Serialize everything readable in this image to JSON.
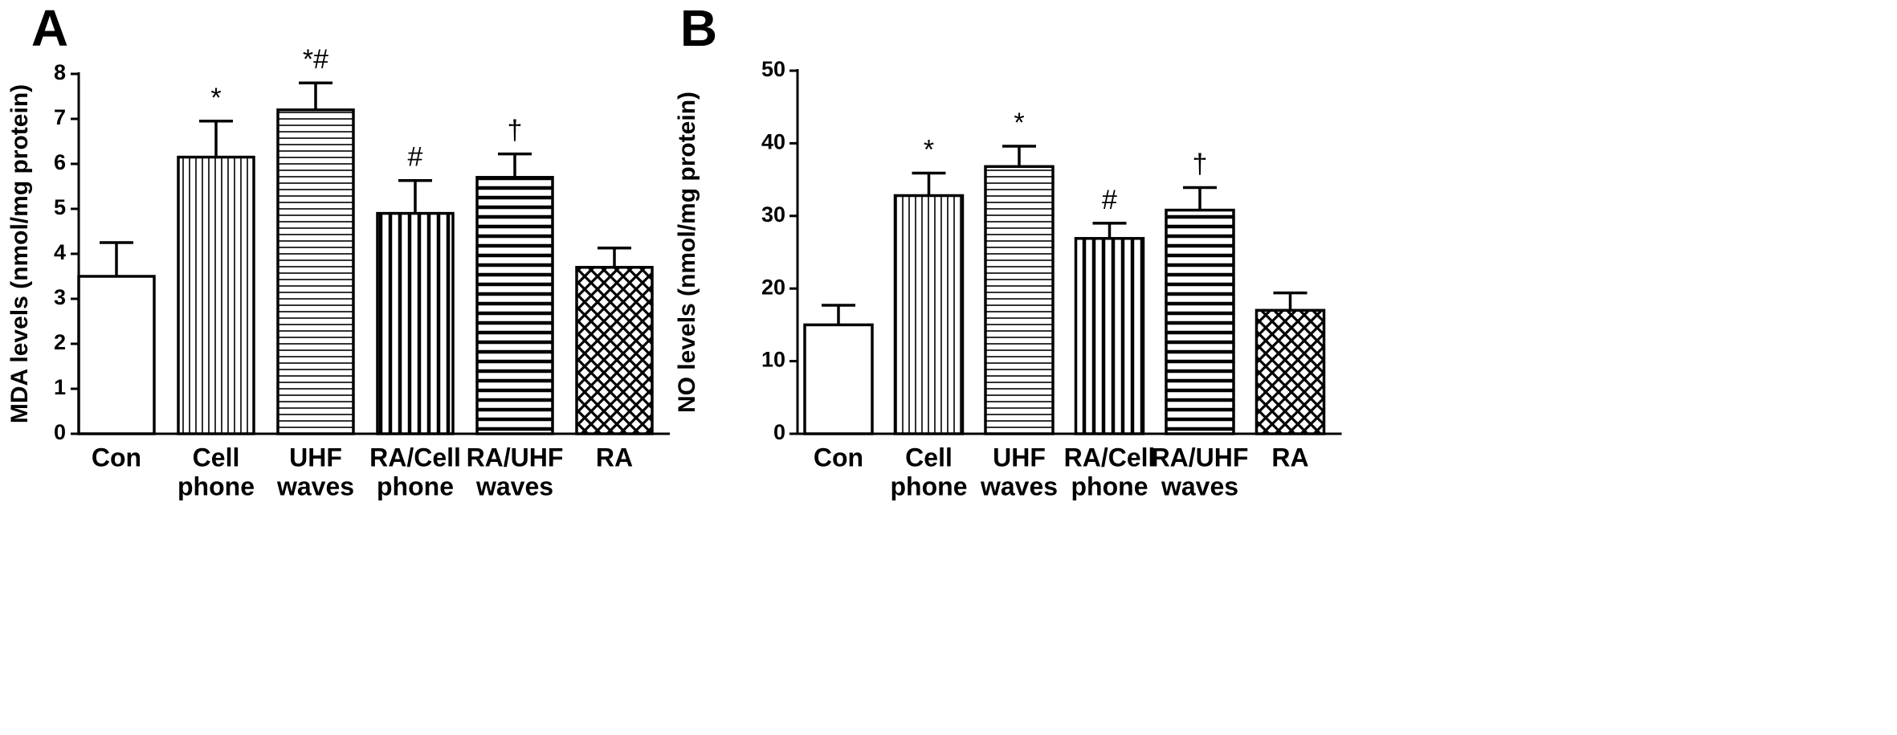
{
  "chart_data": [
    {
      "type": "bar",
      "panel_label": "A",
      "categories": [
        [
          "Con"
        ],
        [
          "Cell",
          "phone"
        ],
        [
          "UHF",
          "waves"
        ],
        [
          "RA/Cell",
          "phone"
        ],
        [
          "RA/UHF",
          "waves"
        ],
        [
          "RA"
        ]
      ],
      "values": [
        3.5,
        6.15,
        7.2,
        4.9,
        5.7,
        3.7
      ],
      "error": [
        0.75,
        0.8,
        0.6,
        0.73,
        0.52,
        0.43
      ],
      "significance": [
        "",
        "*",
        "*#",
        "#",
        "†",
        ""
      ],
      "patterns": [
        "none",
        "vertical-fine",
        "horizontal-fine",
        "vertical-thick",
        "horizontal-thick",
        "crosshatch"
      ],
      "ylabel": "MDA levels (nmol/mg protein)",
      "xlabel": "",
      "ylim": [
        0,
        8
      ],
      "yticks": [
        0,
        1,
        2,
        3,
        4,
        5,
        6,
        7,
        8
      ],
      "grid": false
    },
    {
      "type": "bar",
      "panel_label": "B",
      "categories": [
        [
          "Con"
        ],
        [
          "Cell",
          "phone"
        ],
        [
          "UHF",
          "waves"
        ],
        [
          "RA/Cell",
          "phone"
        ],
        [
          "RA/UHF",
          "waves"
        ],
        [
          "RA"
        ]
      ],
      "values": [
        15,
        32.8,
        36.8,
        26.9,
        30.8,
        17
      ],
      "error": [
        2.7,
        3.1,
        2.8,
        2.1,
        3.1,
        2.4
      ],
      "significance": [
        "",
        "*",
        "*",
        "#",
        "†",
        ""
      ],
      "patterns": [
        "none",
        "vertical-fine",
        "horizontal-fine",
        "vertical-thick",
        "horizontal-thick",
        "crosshatch"
      ],
      "ylabel": "NO levels (nmol/mg protein)",
      "xlabel": "",
      "ylim": [
        0,
        50
      ],
      "yticks": [
        0,
        10,
        20,
        30,
        40,
        50
      ],
      "grid": false
    }
  ]
}
